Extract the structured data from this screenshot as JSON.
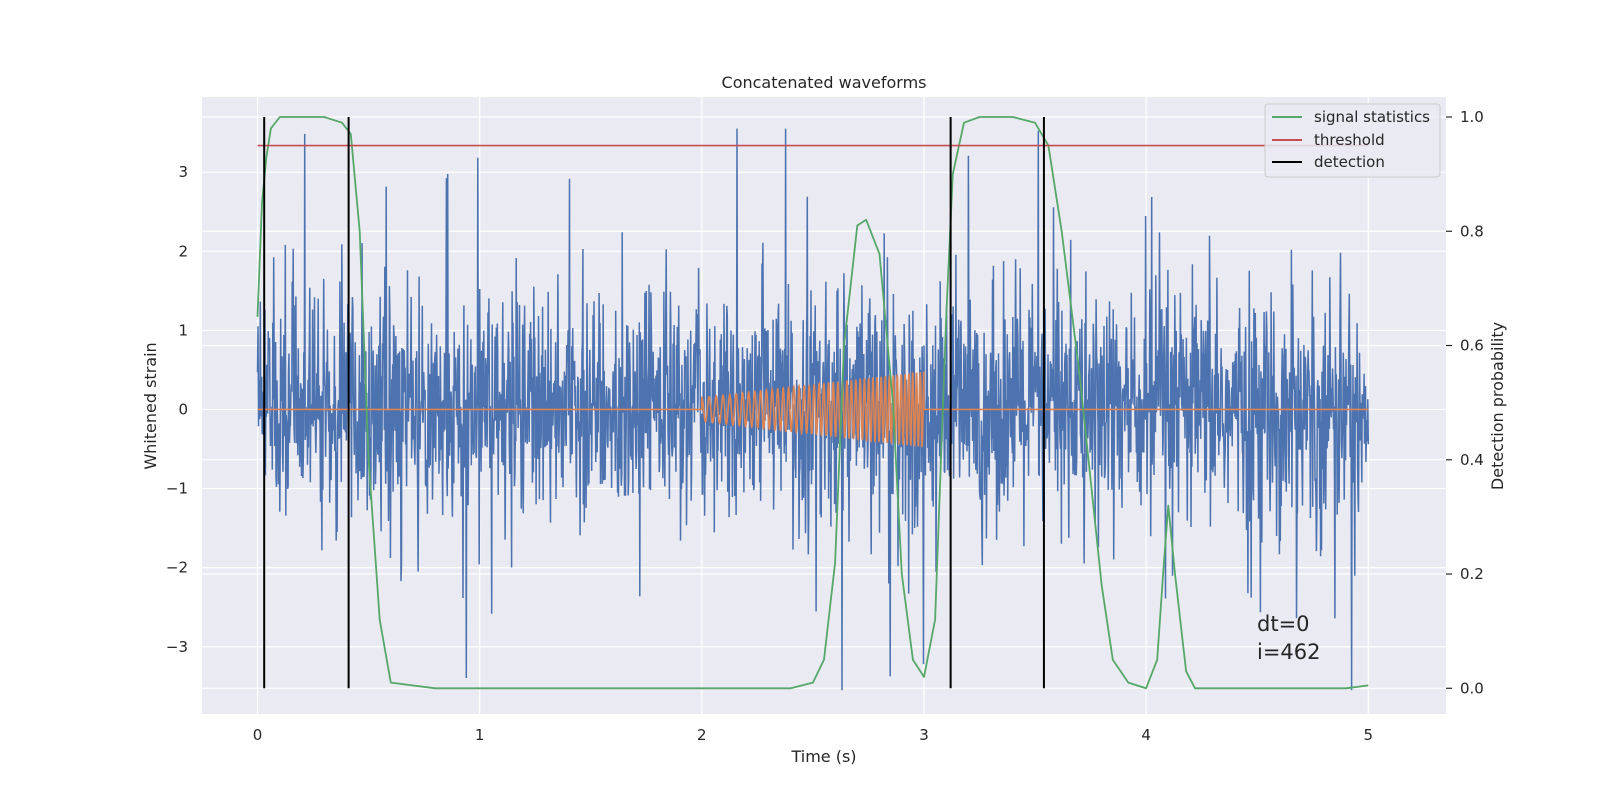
{
  "chart_data": {
    "type": "line",
    "title": "Concatenated waveforms",
    "xlabel": "Time (s)",
    "ylabel_left": "Whitened strain",
    "ylabel_right": "Detection probability",
    "xlim": [
      -0.25,
      5.35
    ],
    "ylim_left": [
      -3.85,
      3.95
    ],
    "ylim_right": [
      -0.045,
      1.035
    ],
    "x_ticks": [
      0,
      1,
      2,
      3,
      4,
      5
    ],
    "y_ticks_left": [
      -3,
      -2,
      -1,
      0,
      1,
      2,
      3
    ],
    "y_ticks_left_labels": [
      "−3",
      "−2",
      "−1",
      "0",
      "1",
      "2",
      "3"
    ],
    "y_ticks_right": [
      0.0,
      0.2,
      0.4,
      0.6,
      0.8,
      1.0
    ],
    "y_ticks_right_labels": [
      "0.0",
      "0.2",
      "0.4",
      "0.6",
      "0.8",
      "1.0"
    ],
    "grid": true,
    "legend_position": "top-right",
    "series": [
      {
        "name": "",
        "axis": "left",
        "color": "#4c72b0",
        "description_type": "whitened noise",
        "x_range": [
          0,
          5
        ],
        "envelope_abs_max": 3.55
      },
      {
        "name": "",
        "axis": "left",
        "color": "#dd8452",
        "description_type": "chirp",
        "x": [
          0,
          2.0,
          2.0,
          3.0,
          3.0,
          5.0
        ],
        "amplitude_start": 0.15,
        "amplitude_end": 0.48
      },
      {
        "name": "signal statistics",
        "axis": "right",
        "color": "#55a868",
        "x": [
          0,
          0.02,
          0.04,
          0.06,
          0.1,
          0.15,
          0.3,
          0.38,
          0.42,
          0.46,
          0.5,
          0.55,
          0.6,
          0.8,
          1.5,
          2.0,
          2.4,
          2.5,
          2.55,
          2.6,
          2.64,
          2.7,
          2.74,
          2.8,
          2.86,
          2.9,
          2.95,
          3.0,
          3.05,
          3.1,
          3.13,
          3.18,
          3.25,
          3.4,
          3.5,
          3.56,
          3.62,
          3.7,
          3.8,
          3.85,
          3.92,
          4.0,
          4.05,
          4.08,
          4.1,
          4.13,
          4.18,
          4.22,
          4.3,
          4.6,
          4.9,
          5.0
        ],
        "y": [
          0.65,
          0.85,
          0.93,
          0.98,
          1.0,
          1.0,
          1.0,
          0.99,
          0.97,
          0.8,
          0.4,
          0.12,
          0.01,
          0.0,
          0.0,
          0.0,
          0.0,
          0.01,
          0.05,
          0.22,
          0.6,
          0.81,
          0.82,
          0.76,
          0.5,
          0.2,
          0.05,
          0.02,
          0.12,
          0.65,
          0.9,
          0.99,
          1.0,
          1.0,
          0.99,
          0.95,
          0.8,
          0.55,
          0.18,
          0.05,
          0.01,
          0.0,
          0.05,
          0.22,
          0.32,
          0.2,
          0.03,
          0.0,
          0.0,
          0.0,
          0.0,
          0.005
        ]
      },
      {
        "name": "threshold",
        "axis": "right",
        "color": "#c44e52",
        "x": [
          0,
          5
        ],
        "y": [
          0.95,
          0.95
        ]
      },
      {
        "name": "detection",
        "axis": "right",
        "color": "#000000",
        "vlines_x": [
          0.03,
          0.41,
          3.12,
          3.54
        ],
        "y_range": [
          0.0,
          1.0
        ]
      }
    ],
    "annotations": [
      "dt=0",
      "i=462"
    ]
  }
}
